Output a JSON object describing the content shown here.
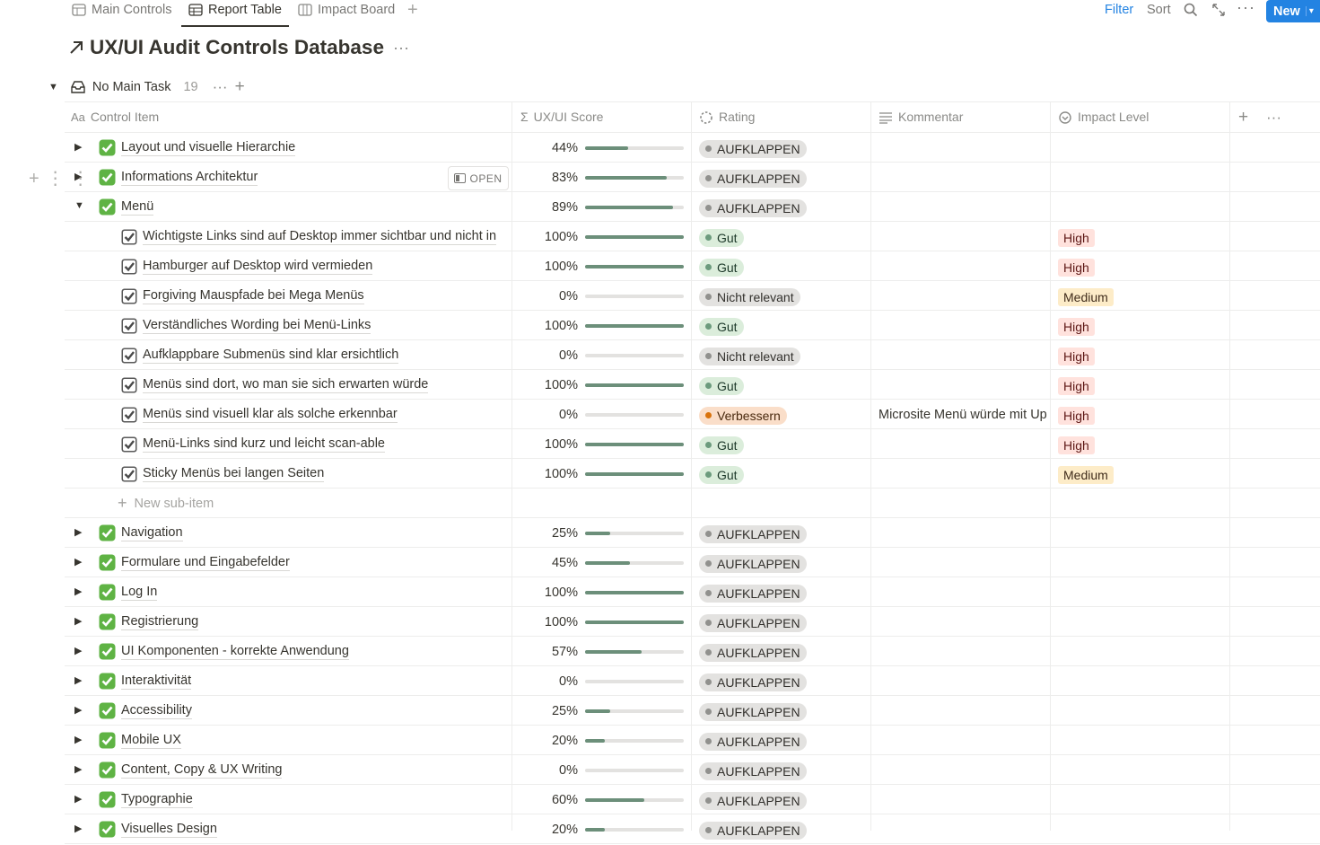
{
  "tabs": [
    "Main Controls",
    "Report Table",
    "Impact Board"
  ],
  "toolbar": {
    "filter": "Filter",
    "sort": "Sort",
    "new": "New"
  },
  "title": "UX/UI Audit Controls Database",
  "group": {
    "label": "No Main Task",
    "count": 19
  },
  "columns": [
    "Control Item",
    "UX/UI Score",
    "Rating",
    "Kommentar",
    "Impact Level"
  ],
  "open_button": "OPEN",
  "new_sub_item": "New sub-item",
  "rows": [
    {
      "item": "Layout und visuelle Hierarchie",
      "score": {
        "value": 44,
        "label": "44%"
      },
      "rating": {
        "label": "AUFKLAPPEN",
        "color": "gray"
      }
    },
    {
      "item": "Informations Architektur",
      "score": {
        "value": 83,
        "label": "83%"
      },
      "rating": {
        "label": "AUFKLAPPEN",
        "color": "gray"
      }
    },
    {
      "item": "Menü",
      "score": {
        "value": 89,
        "label": "89%"
      },
      "rating": {
        "label": "AUFKLAPPEN",
        "color": "gray"
      },
      "subitems": [
        {
          "item": "Wichtigste Links sind auf Desktop immer sichtbar und nicht in",
          "score": {
            "value": 100,
            "label": "100%"
          },
          "rating": {
            "label": "Gut",
            "color": "green"
          },
          "impact": {
            "label": "High",
            "color": "red"
          }
        },
        {
          "item": "Hamburger auf Desktop wird vermieden",
          "score": {
            "value": 100,
            "label": "100%"
          },
          "rating": {
            "label": "Gut",
            "color": "green"
          },
          "impact": {
            "label": "High",
            "color": "red"
          }
        },
        {
          "item": "Forgiving Mauspfade bei Mega Menüs",
          "score": {
            "value": 0,
            "label": "0%"
          },
          "rating": {
            "label": "Nicht relevant",
            "color": "gray"
          },
          "impact": {
            "label": "Medium",
            "color": "yellow"
          }
        },
        {
          "item": "Verständliches Wording bei Menü-Links",
          "score": {
            "value": 100,
            "label": "100%"
          },
          "rating": {
            "label": "Gut",
            "color": "green"
          },
          "impact": {
            "label": "High",
            "color": "red"
          }
        },
        {
          "item": "Aufklappbare Submenüs sind klar ersichtlich",
          "score": {
            "value": 0,
            "label": "0%"
          },
          "rating": {
            "label": "Nicht relevant",
            "color": "gray"
          },
          "impact": {
            "label": "High",
            "color": "red"
          }
        },
        {
          "item": "Menüs sind dort, wo man sie sich erwarten würde",
          "score": {
            "value": 100,
            "label": "100%"
          },
          "rating": {
            "label": "Gut",
            "color": "green"
          },
          "impact": {
            "label": "High",
            "color": "red"
          }
        },
        {
          "item": "Menüs sind visuell klar als solche erkennbar",
          "score": {
            "value": 0,
            "label": "0%"
          },
          "rating": {
            "label": "Verbessern",
            "color": "orange"
          },
          "comment": "Microsite Menü würde mit Up",
          "impact": {
            "label": "High",
            "color": "red"
          }
        },
        {
          "item": "Menü-Links sind kurz und leicht scan-able",
          "score": {
            "value": 100,
            "label": "100%"
          },
          "rating": {
            "label": "Gut",
            "color": "green"
          },
          "impact": {
            "label": "High",
            "color": "red"
          }
        },
        {
          "item": "Sticky Menüs bei langen Seiten",
          "score": {
            "value": 100,
            "label": "100%"
          },
          "rating": {
            "label": "Gut",
            "color": "green"
          },
          "impact": {
            "label": "Medium",
            "color": "yellow"
          }
        }
      ]
    },
    {
      "item": "Navigation",
      "score": {
        "value": 25,
        "label": "25%"
      },
      "rating": {
        "label": "AUFKLAPPEN",
        "color": "gray"
      }
    },
    {
      "item": "Formulare und Eingabefelder",
      "score": {
        "value": 45,
        "label": "45%"
      },
      "rating": {
        "label": "AUFKLAPPEN",
        "color": "gray"
      }
    },
    {
      "item": "Log In",
      "score": {
        "value": 100,
        "label": "100%"
      },
      "rating": {
        "label": "AUFKLAPPEN",
        "color": "gray"
      }
    },
    {
      "item": "Registrierung",
      "score": {
        "value": 100,
        "label": "100%"
      },
      "rating": {
        "label": "AUFKLAPPEN",
        "color": "gray"
      }
    },
    {
      "item": "UI Komponenten - korrekte Anwendung",
      "score": {
        "value": 57,
        "label": "57%"
      },
      "rating": {
        "label": "AUFKLAPPEN",
        "color": "gray"
      }
    },
    {
      "item": "Interaktivität",
      "score": {
        "value": 0,
        "label": "0%"
      },
      "rating": {
        "label": "AUFKLAPPEN",
        "color": "gray"
      }
    },
    {
      "item": "Accessibility",
      "score": {
        "value": 25,
        "label": "25%"
      },
      "rating": {
        "label": "AUFKLAPPEN",
        "color": "gray"
      }
    },
    {
      "item": "Mobile UX",
      "score": {
        "value": 20,
        "label": "20%"
      },
      "rating": {
        "label": "AUFKLAPPEN",
        "color": "gray"
      }
    },
    {
      "item": "Content, Copy & UX Writing",
      "score": {
        "value": 0,
        "label": "0%"
      },
      "rating": {
        "label": "AUFKLAPPEN",
        "color": "gray"
      }
    },
    {
      "item": "Typographie",
      "score": {
        "value": 60,
        "label": "60%"
      },
      "rating": {
        "label": "AUFKLAPPEN",
        "color": "gray"
      }
    },
    {
      "item": "Visuelles Design",
      "score": {
        "value": 20,
        "label": "20%"
      },
      "rating": {
        "label": "AUFKLAPPEN",
        "color": "gray"
      }
    }
  ]
}
